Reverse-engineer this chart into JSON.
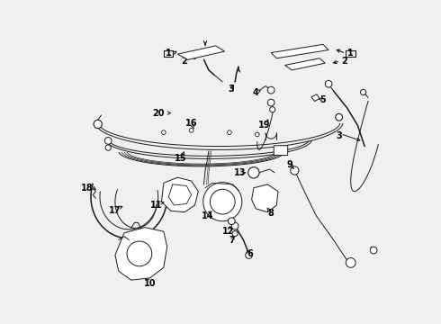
{
  "bg_color": "#f0f0f0",
  "line_color": "#1a1a1a",
  "figsize": [
    4.9,
    3.6
  ],
  "dpi": 100,
  "xlim": [
    0,
    490
  ],
  "ylim": [
    0,
    360
  ]
}
